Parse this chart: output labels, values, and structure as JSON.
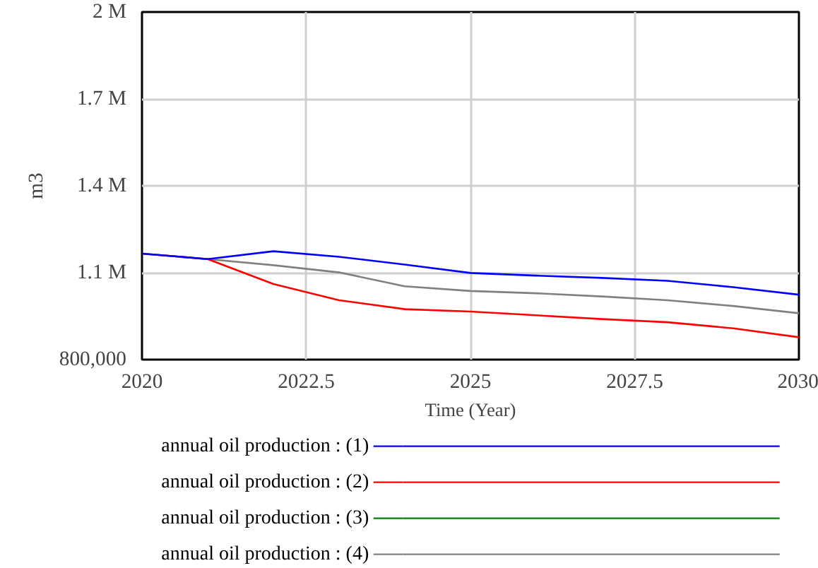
{
  "chart_data": {
    "type": "line",
    "xlabel": "Time (Year)",
    "ylabel": "m3",
    "x": [
      2020,
      2021,
      2022,
      2023,
      2024,
      2025,
      2026,
      2027,
      2028,
      2029,
      2030
    ],
    "xlim": [
      2020,
      2030
    ],
    "xticks": [
      2020,
      2022.5,
      2025,
      2027.5,
      2030
    ],
    "ylim": [
      800000,
      2000000
    ],
    "yticks": [
      {
        "value": 800000,
        "label": "800,000"
      },
      {
        "value": 1100000,
        "label": "1.1 M"
      },
      {
        "value": 1400000,
        "label": "1.4 M"
      },
      {
        "value": 1700000,
        "label": "1.7 M"
      },
      {
        "value": 2000000,
        "label": "2 M"
      }
    ],
    "grid": true,
    "legend": "bottom",
    "marker": "none",
    "line_style": "solid",
    "series": [
      {
        "name": "annual oil production : (1)",
        "color": "#0000ff",
        "values": [
          1166000,
          1147000,
          1174000,
          1155000,
          1128000,
          1099000,
          1090000,
          1082000,
          1072000,
          1050000,
          1024000
        ]
      },
      {
        "name": "annual oil production : (2)",
        "color": "#ff0000",
        "values": [
          1166000,
          1147000,
          1061000,
          1005000,
          974000,
          966000,
          953000,
          940000,
          929000,
          908000,
          877000
        ]
      },
      {
        "name": "annual oil production : (3)",
        "color": "#008000",
        "values": [
          null,
          null,
          null,
          null,
          null,
          null,
          null,
          null,
          null,
          null,
          null
        ]
      },
      {
        "name": "annual oil production : (4)",
        "color": "#808080",
        "values": [
          1166000,
          1147000,
          1126000,
          1101000,
          1053000,
          1037000,
          1029000,
          1018000,
          1005000,
          985000,
          960000
        ]
      }
    ]
  }
}
